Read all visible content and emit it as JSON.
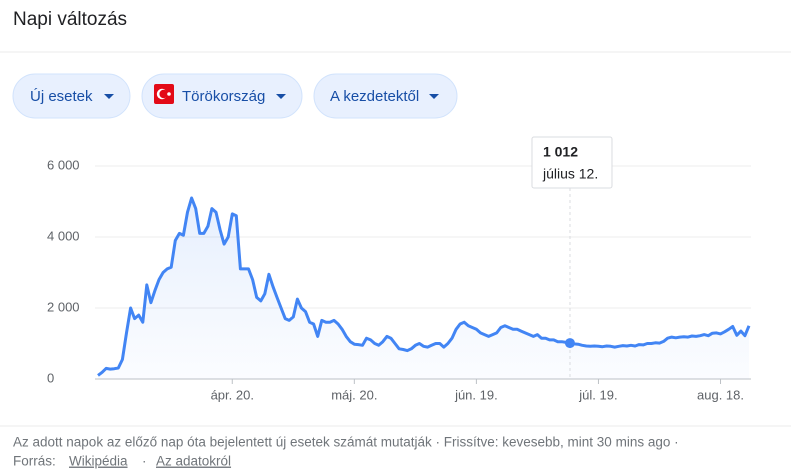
{
  "header": {
    "title": "Napi változás"
  },
  "filters": [
    "Új esetek",
    "Törökország",
    "A kezdetektől"
  ],
  "footer": {
    "note": "Az adott napok az előző nap óta bejelentett új esetek számát mutatják · Frissítve: kevesebb, mint 30 mins ago ·",
    "source_label": "Forrás:",
    "source_link": "Wikipédia",
    "separator": "·",
    "about_link": "Az adatokról"
  },
  "chart_data": {
    "type": "line",
    "color": "#4285f4",
    "grid": true,
    "ylim": [
      0,
      6000
    ],
    "yticks": [
      0,
      {
        "value": 2000,
        "label": "2 000"
      },
      {
        "value": 4000,
        "label": "4 000"
      },
      {
        "value": 6000,
        "label": "6 000"
      }
    ],
    "categories": [
      null,
      null,
      null,
      null,
      null,
      null,
      null,
      null,
      null,
      null,
      null,
      null,
      null,
      null,
      null,
      null,
      null,
      null,
      null,
      null,
      null,
      null,
      null,
      null,
      null,
      null,
      null,
      null,
      null,
      null,
      null,
      null,
      null,
      "ápr. 20.",
      null,
      null,
      null,
      null,
      null,
      null,
      null,
      null,
      null,
      null,
      null,
      null,
      null,
      null,
      null,
      null,
      null,
      null,
      null,
      null,
      null,
      null,
      null,
      null,
      null,
      null,
      null,
      null,
      null,
      "máj. 20.",
      null,
      null,
      null,
      null,
      null,
      null,
      null,
      null,
      null,
      null,
      null,
      null,
      null,
      null,
      null,
      null,
      null,
      null,
      null,
      null,
      null,
      null,
      null,
      null,
      null,
      null,
      null,
      null,
      null,
      "jún. 19.",
      null,
      null,
      null,
      null,
      null,
      null,
      null,
      null,
      null,
      null,
      null,
      null,
      null,
      null,
      null,
      null,
      null,
      null,
      null,
      null,
      null,
      null,
      null,
      null,
      null,
      null,
      null,
      null,
      null,
      "júl. 19.",
      null,
      null,
      null,
      null,
      null,
      null,
      null,
      null,
      null,
      null,
      null,
      null,
      null,
      null,
      null,
      null,
      null,
      null,
      null,
      null,
      null,
      null,
      null,
      null,
      null,
      null,
      null,
      null,
      null,
      "aug. 18.",
      null,
      null,
      null,
      null,
      null,
      null,
      null
    ],
    "values": [
      100,
      190,
      300,
      280,
      290,
      310,
      550,
      1300,
      2000,
      1700,
      1800,
      1600,
      2650,
      2150,
      2500,
      2800,
      3000,
      3100,
      3150,
      3900,
      4100,
      4050,
      4700,
      5100,
      4800,
      4100,
      4100,
      4300,
      4800,
      4700,
      4200,
      3800,
      4000,
      4650,
      4600,
      3100,
      3100,
      3100,
      2800,
      2300,
      2200,
      2400,
      2950,
      2600,
      2300,
      2000,
      1700,
      1650,
      1750,
      2250,
      2000,
      1900,
      1600,
      1550,
      1200,
      1650,
      1600,
      1600,
      1650,
      1550,
      1400,
      1200,
      1050,
      980,
      970,
      950,
      1150,
      1100,
      1000,
      950,
      1050,
      1200,
      1150,
      1000,
      850,
      830,
      800,
      850,
      950,
      1000,
      920,
      900,
      950,
      1000,
      1000,
      900,
      1000,
      1150,
      1400,
      1550,
      1600,
      1500,
      1450,
      1400,
      1300,
      1250,
      1200,
      1250,
      1300,
      1450,
      1500,
      1450,
      1400,
      1400,
      1350,
      1300,
      1250,
      1200,
      1250,
      1150,
      1150,
      1100,
      1100,
      1050,
      1050,
      1030,
      1012,
      990,
      980,
      950,
      930,
      920,
      930,
      920,
      910,
      930,
      920,
      900,
      920,
      940,
      930,
      950,
      930,
      970,
      960,
      1000,
      1000,
      1020,
      1010,
      1060,
      1150,
      1180,
      1160,
      1180,
      1190,
      1180,
      1210,
      1200,
      1220,
      1250,
      1220,
      1290,
      1300,
      1270,
      1330,
      1400,
      1480,
      1230,
      1350,
      1220,
      1500
    ],
    "tooltip": {
      "value": 1012,
      "value_label": "1 012",
      "date": "július 12."
    }
  }
}
